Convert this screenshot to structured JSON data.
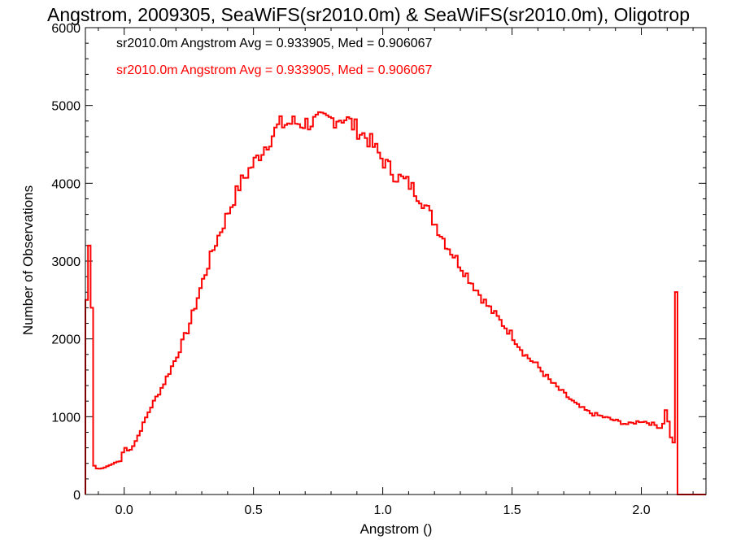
{
  "chart_data": {
    "type": "line",
    "title": "Angstrom, 2009305, SeaWiFS(sr2010.0m) & SeaWiFS(sr2010.0m), Oligotrop",
    "xlabel": "Angstrom ()",
    "ylabel": "Number of Observations",
    "xlim": [
      -0.15,
      2.25
    ],
    "ylim": [
      0,
      6000
    ],
    "x_ticks": [
      0.0,
      0.5,
      1.0,
      1.5,
      2.0
    ],
    "x_tick_labels": [
      "0.0",
      "0.5",
      "1.0",
      "1.5",
      "2.0"
    ],
    "y_ticks": [
      0,
      1000,
      2000,
      3000,
      4000,
      5000,
      6000
    ],
    "y_tick_labels": [
      "0",
      "1000",
      "2000",
      "3000",
      "4000",
      "5000",
      "6000"
    ],
    "grid": false,
    "legend_position": "top-left",
    "annotations": [
      {
        "text": "sr2010.0m Angstrom Avg = 0.933905, Med = 0.906067",
        "color": "#000000"
      },
      {
        "text": "sr2010.0m Angstrom Avg = 0.933905, Med = 0.906067",
        "color": "#ff0000"
      }
    ],
    "series": [
      {
        "color": "#ff0000",
        "x": [
          -0.15,
          -0.14,
          -0.135,
          -0.13,
          -0.125,
          -0.12,
          -0.115,
          -0.11,
          -0.1,
          -0.08,
          -0.06,
          -0.04,
          -0.03,
          -0.01,
          0.0,
          0.01,
          0.03,
          0.05,
          0.1,
          0.15,
          0.2,
          0.25,
          0.3,
          0.35,
          0.4,
          0.45,
          0.5,
          0.55,
          0.6,
          0.65,
          0.7,
          0.75,
          0.8,
          0.85,
          0.9,
          0.95,
          1.0,
          1.05,
          1.1,
          1.15,
          1.2,
          1.25,
          1.3,
          1.35,
          1.4,
          1.45,
          1.5,
          1.55,
          1.6,
          1.65,
          1.7,
          1.75,
          1.8,
          1.85,
          1.9,
          1.95,
          2.0,
          2.05,
          2.08,
          2.1,
          2.11,
          2.12,
          2.13,
          2.135,
          2.14,
          2.145,
          2.15,
          2.2,
          2.25
        ],
        "y": [
          1600,
          3400,
          3200,
          3800,
          2400,
          800,
          370,
          340,
          330,
          340,
          370,
          400,
          420,
          430,
          650,
          550,
          600,
          720,
          1100,
          1400,
          1750,
          2150,
          2700,
          3200,
          3600,
          4000,
          4250,
          4500,
          4750,
          4780,
          4770,
          4800,
          4820,
          4850,
          4700,
          4550,
          4300,
          4100,
          4000,
          3800,
          3500,
          3200,
          2950,
          2700,
          2450,
          2250,
          2050,
          1800,
          1650,
          1450,
          1300,
          1150,
          1050,
          1000,
          950,
          900,
          950,
          900,
          850,
          1150,
          750,
          700,
          650,
          2550,
          0,
          0,
          0,
          0,
          0
        ]
      }
    ]
  }
}
